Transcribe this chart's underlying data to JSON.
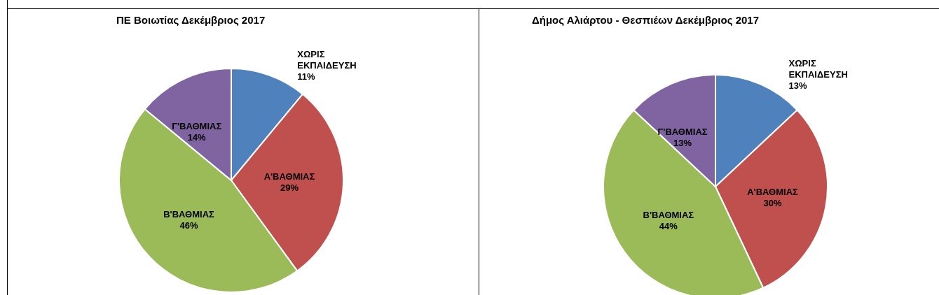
{
  "chart_data": [
    {
      "type": "pie",
      "title": "ΠΕ Βοιωτίας Δεκέμβριος 2017",
      "categories": [
        "ΧΩΡΙΣ ΕΚΠΑΙΔΕΥΣΗ",
        "Α'ΒΑΘΜΙΑΣ",
        "Β'ΒΑΘΜΙΑΣ",
        "Γ'ΒΑΘΜΙΑΣ"
      ],
      "values": [
        11,
        29,
        46,
        14
      ],
      "value_labels": [
        "11%",
        "29%",
        "46%",
        "14%"
      ],
      "colors": [
        "#4f81bd",
        "#c0504d",
        "#9bbb59",
        "#8064a2"
      ]
    },
    {
      "type": "pie",
      "title": "Δήμος Αλιάρτου - Θεσπιέων Δεκέμβριος 2017",
      "categories": [
        "ΧΩΡΙΣ ΕΚΠΑΙΔΕΥΣΗ",
        "Α'ΒΑΘΜΙΑΣ",
        "Β'ΒΑΘΜΙΑΣ",
        "Γ'ΒΑΘΜΙΑΣ"
      ],
      "values": [
        13,
        30,
        44,
        13
      ],
      "value_labels": [
        "13%",
        "30%",
        "44%",
        "13%"
      ],
      "colors": [
        "#4f81bd",
        "#c0504d",
        "#9bbb59",
        "#8064a2"
      ]
    }
  ]
}
